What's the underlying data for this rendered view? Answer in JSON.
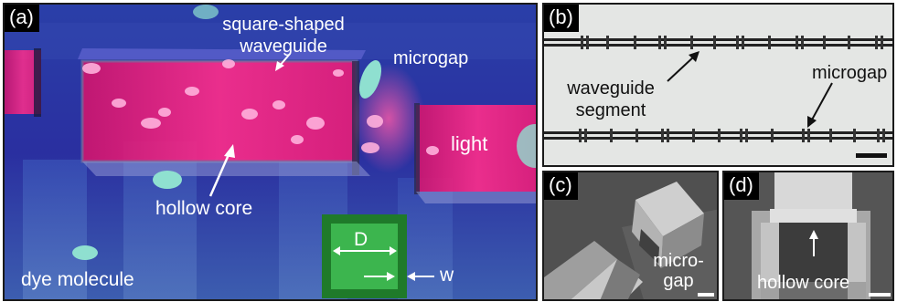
{
  "panels": {
    "a": {
      "tag": "(a)",
      "labels": {
        "square_waveguide_line1": "square-shaped",
        "square_waveguide_line2": "waveguide",
        "microgap": "microgap",
        "light": "light",
        "hollow_core": "hollow core",
        "dye_molecule": "dye molecule",
        "inset_D": "D",
        "inset_w": "w"
      },
      "colors": {
        "background": "#1d2f8f",
        "light_core": "#ff2d8a",
        "molecule": "#8fe0d0",
        "inset_border": "#1f7a2a",
        "inset_fill": "#2ca04a"
      }
    },
    "b": {
      "tag": "(b)",
      "labels": {
        "waveguide_line1": "waveguide",
        "waveguide_line2": "segment",
        "microgap": "microgap"
      }
    },
    "c": {
      "tag": "(c)",
      "labels": {
        "micro": "micro-",
        "gap": "gap"
      }
    },
    "d": {
      "tag": "(d)",
      "labels": {
        "hollow_core": "hollow core"
      }
    }
  }
}
